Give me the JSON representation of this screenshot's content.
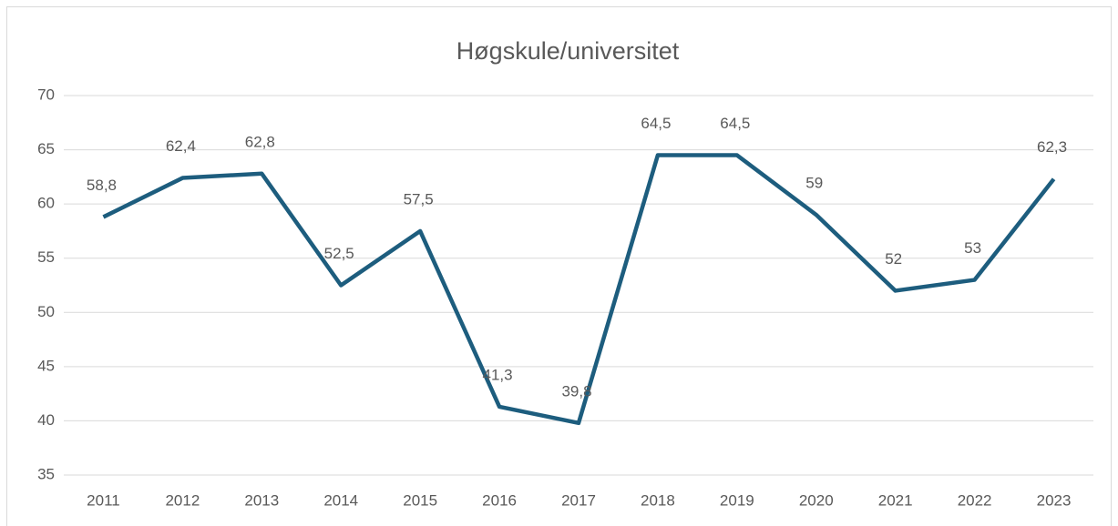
{
  "chart_data": {
    "type": "line",
    "title": "Høgskule/universitet",
    "categories": [
      "2011",
      "2012",
      "2013",
      "2014",
      "2015",
      "2016",
      "2017",
      "2018",
      "2019",
      "2020",
      "2021",
      "2022",
      "2023"
    ],
    "values": [
      58.8,
      62.4,
      62.8,
      52.5,
      57.5,
      41.3,
      39.8,
      64.5,
      64.5,
      59,
      52,
      53,
      62.3
    ],
    "value_labels": [
      "58,8",
      "62,4",
      "62,8",
      "52,5",
      "57,5",
      "41,3",
      "39,8",
      "64,5",
      "64,5",
      "59",
      "52",
      "53",
      "62,3"
    ],
    "color": "#1d5d7e",
    "ylim": [
      35,
      70
    ],
    "yticks": [
      35,
      40,
      45,
      50,
      55,
      60,
      65,
      70
    ],
    "grid": true
  }
}
